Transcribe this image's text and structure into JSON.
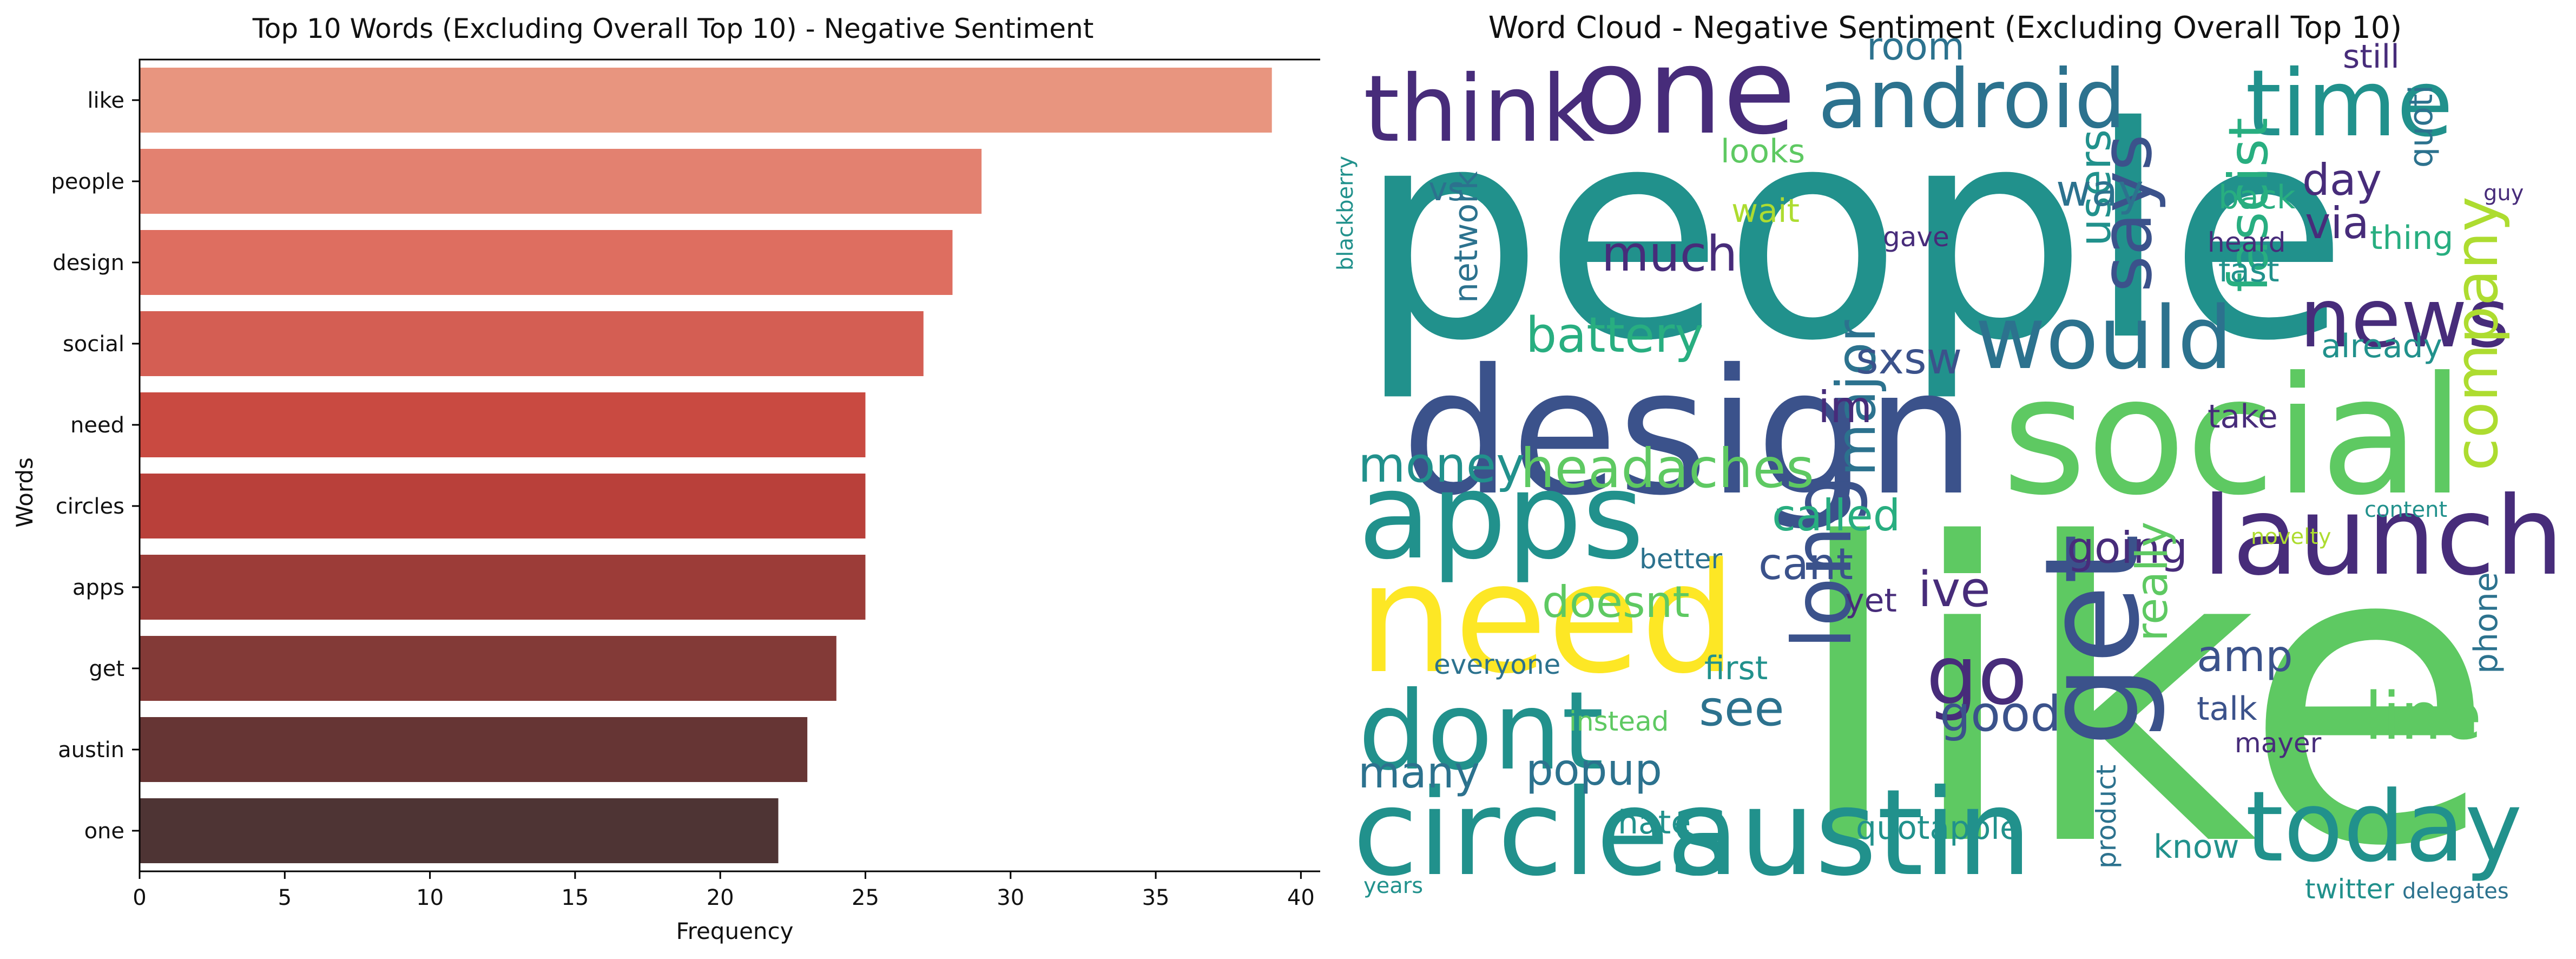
{
  "chart_data": [
    {
      "type": "bar",
      "orientation": "horizontal",
      "title": "Top 10 Words (Excluding Overall Top 10) - Negative Sentiment",
      "xlabel": "Frequency",
      "ylabel": "Words",
      "categories": [
        "like",
        "people",
        "design",
        "social",
        "need",
        "circles",
        "apps",
        "get",
        "austin",
        "one"
      ],
      "values": [
        39,
        29,
        28,
        27,
        25,
        25,
        25,
        24,
        23,
        22
      ],
      "xlim": [
        0,
        41
      ],
      "xticks": [
        0,
        5,
        10,
        15,
        20,
        25,
        30,
        35,
        40
      ],
      "colors": [
        "#e8957f",
        "#e38170",
        "#de6e60",
        "#d45e53",
        "#c94a41",
        "#b9403a",
        "#9c3c38",
        "#833a37",
        "#663534",
        "#4e3434"
      ],
      "grid": false,
      "legend": "none"
    },
    {
      "type": "wordcloud",
      "title": "Word Cloud - Negative Sentiment (Excluding Overall Top 10)",
      "colormap": "viridis",
      "words": [
        {
          "text": "like",
          "color": "#5ec962",
          "rot": 0
        },
        {
          "text": "people",
          "color": "#21918c",
          "rot": 0
        },
        {
          "text": "design",
          "color": "#3b528b",
          "rot": 0
        },
        {
          "text": "social",
          "color": "#5ec962",
          "rot": 0
        },
        {
          "text": "need",
          "color": "#fde725",
          "rot": 0
        },
        {
          "text": "circles",
          "color": "#21918c",
          "rot": 0
        },
        {
          "text": "austin",
          "color": "#21918c",
          "rot": 0
        },
        {
          "text": "apps",
          "color": "#21918c",
          "rot": 0
        },
        {
          "text": "one",
          "color": "#472c7a",
          "rot": 0
        },
        {
          "text": "get",
          "color": "#3b528b",
          "rot": 90
        },
        {
          "text": "launch",
          "color": "#472c7a",
          "rot": 0
        },
        {
          "text": "dont",
          "color": "#21918c",
          "rot": 0
        },
        {
          "text": "android",
          "color": "#2c728e",
          "rot": 0
        },
        {
          "text": "today",
          "color": "#21918c",
          "rot": 0
        },
        {
          "text": "think",
          "color": "#472c7a",
          "rot": 0
        },
        {
          "text": "time",
          "color": "#21918c",
          "rot": 0
        },
        {
          "text": "would",
          "color": "#2c728e",
          "rot": 0
        },
        {
          "text": "long",
          "color": "#3b528b",
          "rot": 90
        },
        {
          "text": "news",
          "color": "#472c7a",
          "rot": 0
        },
        {
          "text": "go",
          "color": "#472c7a",
          "rot": 0
        },
        {
          "text": "line",
          "color": "#5ec962",
          "rot": 0
        },
        {
          "text": "says",
          "color": "#3b528b",
          "rot": 90
        },
        {
          "text": "company",
          "color": "#addc30",
          "rot": 90
        },
        {
          "text": "headaches",
          "color": "#5ec962",
          "rot": 0
        },
        {
          "text": "popup",
          "color": "#2c728e",
          "rot": 0
        },
        {
          "text": "major",
          "color": "#2c728e",
          "rot": 90
        },
        {
          "text": "battery",
          "color": "#28ae80",
          "rot": 0
        },
        {
          "text": "fascist",
          "color": "#28ae80",
          "rot": 90
        },
        {
          "text": "good",
          "color": "#3b528b",
          "rot": 0
        },
        {
          "text": "much",
          "color": "#472c7a",
          "rot": 0
        },
        {
          "text": "money",
          "color": "#21918c",
          "rot": 0
        },
        {
          "text": "many",
          "color": "#2c728e",
          "rot": 0
        },
        {
          "text": "see",
          "color": "#2c728e",
          "rot": 0
        },
        {
          "text": "sxsw",
          "color": "#3b528b",
          "rot": 0
        },
        {
          "text": "called",
          "color": "#28ae80",
          "rot": 0
        },
        {
          "text": "ive",
          "color": "#472c7a",
          "rot": 0
        },
        {
          "text": "cant",
          "color": "#3b528b",
          "rot": 0
        },
        {
          "text": "going",
          "color": "#472c7a",
          "rot": 0
        },
        {
          "text": "users",
          "color": "#21918c",
          "rot": 90
        },
        {
          "text": "room",
          "color": "#2c728e",
          "rot": 0
        },
        {
          "text": "day",
          "color": "#472c7a",
          "rot": 0
        },
        {
          "text": "way",
          "color": "#2c728e",
          "rot": 0
        },
        {
          "text": "via",
          "color": "#472c7a",
          "rot": 0
        },
        {
          "text": "amp",
          "color": "#3b528b",
          "rot": 0
        },
        {
          "text": "doesnt",
          "color": "#5ec962",
          "rot": 0
        },
        {
          "text": "really",
          "color": "#5ec962",
          "rot": 90
        },
        {
          "text": "hate",
          "color": "#21918c",
          "rot": 0
        },
        {
          "text": "quotapple",
          "color": "#21918c",
          "rot": 0
        },
        {
          "text": "already",
          "color": "#21918c",
          "rot": 0
        },
        {
          "text": "im",
          "color": "#472c7a",
          "rot": 0
        },
        {
          "text": "wait",
          "color": "#addc30",
          "rot": 0
        },
        {
          "text": "vs",
          "color": "#2c728e",
          "rot": 0
        },
        {
          "text": "network",
          "color": "#2c728e",
          "rot": 90
        },
        {
          "text": "looks",
          "color": "#5ec962",
          "rot": 0
        },
        {
          "text": "still",
          "color": "#472c7a",
          "rot": 0
        },
        {
          "text": "back",
          "color": "#28ae80",
          "rot": 0
        },
        {
          "text": "fast",
          "color": "#21918c",
          "rot": 0
        },
        {
          "text": "thing",
          "color": "#28ae80",
          "rot": 0
        },
        {
          "text": "quoti",
          "color": "#2c728e",
          "rot": 90
        },
        {
          "text": "take",
          "color": "#472c7a",
          "rot": 0
        },
        {
          "text": "first",
          "color": "#21918c",
          "rot": 0
        },
        {
          "text": "talk",
          "color": "#3b528b",
          "rot": 0
        },
        {
          "text": "know",
          "color": "#21918c",
          "rot": 0
        },
        {
          "text": "phone",
          "color": "#2c728e",
          "rot": 90
        },
        {
          "text": "yet",
          "color": "#472c7a",
          "rot": 0
        },
        {
          "text": "better",
          "color": "#2c728e",
          "rot": 0
        },
        {
          "text": "everyone",
          "color": "#2c728e",
          "rot": 0
        },
        {
          "text": "product",
          "color": "#2c728e",
          "rot": 90
        },
        {
          "text": "twitter",
          "color": "#21918c",
          "rot": 0
        },
        {
          "text": "delegates",
          "color": "#2c728e",
          "rot": 0
        },
        {
          "text": "instead",
          "color": "#5ec962",
          "rot": 0
        },
        {
          "text": "mayer",
          "color": "#472c7a",
          "rot": 0
        },
        {
          "text": "blackberry",
          "color": "#21918c",
          "rot": 90
        },
        {
          "text": "years",
          "color": "#21918c",
          "rot": 0
        },
        {
          "text": "content",
          "color": "#21918c",
          "rot": 0
        },
        {
          "text": "novelty",
          "color": "#addc30",
          "rot": 0
        },
        {
          "text": "guy",
          "color": "#472c7a",
          "rot": 0
        },
        {
          "text": "gave",
          "color": "#472c7a",
          "rot": 0
        },
        {
          "text": "heard",
          "color": "#472c7a",
          "rot": 0
        }
      ]
    }
  ]
}
